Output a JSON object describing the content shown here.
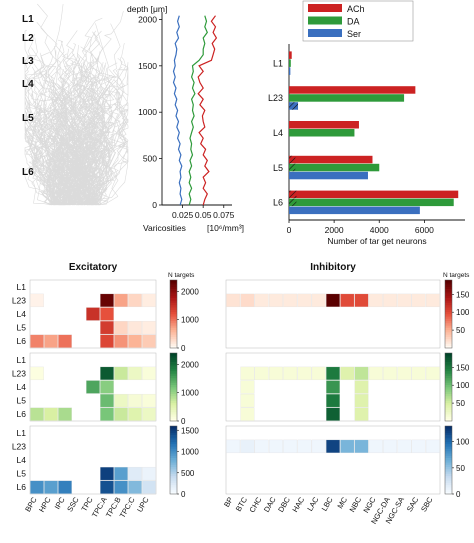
{
  "chart_data": [
    {
      "type": "morphology",
      "layer_labels": [
        "L1",
        "L2",
        "L3",
        "L4",
        "L5",
        "L6"
      ]
    },
    {
      "type": "line",
      "ylabel": "depth [μm]",
      "xlabel": "Varicosities",
      "xlabel_unit": "[10⁶/mm³]",
      "xticks": [
        0.025,
        0.05,
        0.075
      ],
      "xlim": [
        0.0,
        0.085
      ],
      "yticks": [
        0,
        500,
        1000,
        1500,
        2000
      ],
      "ylim": [
        0,
        2080
      ],
      "series": [
        {
          "name": "ACh",
          "color": "#cc2222",
          "x": [
            0.05,
            0.052,
            0.055,
            0.05,
            0.053,
            0.05,
            0.057,
            0.052,
            0.055,
            0.05,
            0.053,
            0.047,
            0.05,
            0.045,
            0.052,
            0.05,
            0.049,
            0.052,
            0.046,
            0.05,
            0.044,
            0.05,
            0.046,
            0.044,
            0.05,
            0.045,
            0.06,
            0.062,
            0.064,
            0.061,
            0.066,
            0.062,
            0.065,
            0.06,
            0.065
          ],
          "y": [
            0,
            60,
            120,
            180,
            240,
            300,
            360,
            420,
            480,
            540,
            600,
            660,
            720,
            780,
            840,
            900,
            960,
            1020,
            1080,
            1140,
            1200,
            1260,
            1320,
            1380,
            1440,
            1500,
            1560,
            1620,
            1680,
            1740,
            1800,
            1860,
            1920,
            1980,
            2040
          ]
        },
        {
          "name": "DA",
          "color": "#2e9a3a",
          "x": [
            0.033,
            0.035,
            0.033,
            0.036,
            0.033,
            0.035,
            0.033,
            0.036,
            0.034,
            0.037,
            0.035,
            0.036,
            0.034,
            0.036,
            0.038,
            0.036,
            0.039,
            0.037,
            0.038,
            0.036,
            0.04,
            0.037,
            0.039,
            0.036,
            0.038,
            0.037,
            0.045,
            0.05,
            0.05,
            0.052,
            0.05,
            0.055,
            0.052,
            0.054,
            0.052
          ],
          "y": [
            0,
            60,
            120,
            180,
            240,
            300,
            360,
            420,
            480,
            540,
            600,
            660,
            720,
            780,
            840,
            900,
            960,
            1020,
            1080,
            1140,
            1200,
            1260,
            1320,
            1380,
            1440,
            1500,
            1560,
            1620,
            1680,
            1740,
            1800,
            1860,
            1920,
            1980,
            2040
          ]
        },
        {
          "name": "Ser",
          "color": "#3a6fbf",
          "x": [
            0.022,
            0.024,
            0.022,
            0.023,
            0.021,
            0.023,
            0.022,
            0.024,
            0.021,
            0.023,
            0.02,
            0.022,
            0.019,
            0.021,
            0.018,
            0.02,
            0.017,
            0.019,
            0.016,
            0.018,
            0.015,
            0.017,
            0.014,
            0.016,
            0.014,
            0.016,
            0.015,
            0.017,
            0.018,
            0.016,
            0.02,
            0.018,
            0.021,
            0.019,
            0.021
          ],
          "y": [
            0,
            60,
            120,
            180,
            240,
            300,
            360,
            420,
            480,
            540,
            600,
            660,
            720,
            780,
            840,
            900,
            960,
            1020,
            1080,
            1140,
            1200,
            1260,
            1320,
            1380,
            1440,
            1500,
            1560,
            1620,
            1680,
            1740,
            1800,
            1860,
            1920,
            1980,
            2040
          ]
        }
      ]
    },
    {
      "type": "bar",
      "orientation": "horizontal",
      "categories": [
        "L1",
        "L23",
        "L4",
        "L5",
        "L6"
      ],
      "xlabel": "Number of tar get neurons",
      "xticks": [
        0,
        2000,
        4000,
        6000
      ],
      "xlim": [
        0,
        7800
      ],
      "legend": [
        "ACh",
        "DA",
        "Ser"
      ],
      "legend_position": "top",
      "series": [
        {
          "name": "ACh",
          "color": "#cc2222",
          "values": [
            120,
            5600,
            3100,
            3700,
            7500
          ]
        },
        {
          "name": "DA",
          "color": "#2e9a3a",
          "values": [
            80,
            5100,
            2900,
            4000,
            7300
          ]
        },
        {
          "name": "Ser",
          "color": "#3a6fbf",
          "values": [
            60,
            400,
            0,
            3500,
            5800
          ]
        }
      ],
      "hatched_overlay": [
        {
          "category": "L23",
          "values": [
            0,
            0,
            400
          ]
        },
        {
          "category": "L5",
          "values": [
            280,
            280,
            0
          ]
        },
        {
          "category": "L6",
          "values": [
            330,
            330,
            0
          ]
        }
      ]
    },
    {
      "type": "heatmap",
      "title": "Excitatory",
      "rows": [
        "L1",
        "L23",
        "L4",
        "L5",
        "L6"
      ],
      "columns": [
        "BPC",
        "HPC",
        "IPC",
        "SSC",
        "TPC",
        "TPC:A",
        "TPC:B",
        "TPC:C",
        "UPC"
      ],
      "panels": [
        {
          "name": "ACh",
          "max": 2400,
          "ticks": [
            0,
            1000,
            2000
          ],
          "colorbar_label": "N targets",
          "values": [
            [
              null,
              null,
              null,
              null,
              null,
              null,
              null,
              null,
              null
            ],
            [
              50,
              null,
              null,
              null,
              null,
              2300,
              700,
              300,
              100
            ],
            [
              null,
              null,
              null,
              null,
              1500,
              1200,
              null,
              null,
              null
            ],
            [
              null,
              null,
              null,
              null,
              null,
              1400,
              300,
              150,
              100
            ],
            [
              900,
              700,
              1000,
              null,
              null,
              1300,
              800,
              600,
              400
            ]
          ]
        },
        {
          "name": "DA",
          "max": 2400,
          "ticks": [
            0,
            1000,
            2000
          ],
          "values": [
            [
              null,
              null,
              null,
              null,
              null,
              null,
              null,
              null,
              null
            ],
            [
              50,
              null,
              null,
              null,
              null,
              2200,
              700,
              300,
              100
            ],
            [
              null,
              null,
              null,
              null,
              1500,
              1100,
              null,
              null,
              null
            ],
            [
              null,
              null,
              null,
              null,
              null,
              1300,
              300,
              150,
              100
            ],
            [
              800,
              600,
              900,
              null,
              null,
              1200,
              700,
              500,
              300
            ]
          ]
        },
        {
          "name": "Ser",
          "max": 1600,
          "ticks": [
            0,
            500,
            1000,
            1500
          ],
          "values": [
            [
              null,
              null,
              null,
              null,
              null,
              null,
              null,
              null,
              null
            ],
            [
              null,
              null,
              null,
              null,
              null,
              null,
              null,
              null,
              null
            ],
            [
              null,
              null,
              null,
              null,
              null,
              null,
              null,
              null,
              null
            ],
            [
              null,
              null,
              null,
              null,
              null,
              1500,
              900,
              200,
              100
            ],
            [
              1000,
              900,
              1100,
              null,
              null,
              1400,
              1000,
              700,
              300
            ]
          ]
        }
      ]
    },
    {
      "type": "heatmap",
      "title": "Inhibitory",
      "rows": [
        "L1",
        "L23",
        "L4",
        "L5",
        "L6"
      ],
      "columns": [
        "BP",
        "BTC",
        "CHC",
        "DAC",
        "DBC",
        "HAC",
        "LAC",
        "LBC",
        "MC",
        "NBC",
        "NGC",
        "NGC-DA",
        "NGC-SA",
        "SAC",
        "SBC"
      ],
      "panels": [
        {
          "name": "ACh",
          "max": 190,
          "ticks": [
            50,
            100,
            150
          ],
          "colorbar_label": "N targets",
          "values": [
            [
              null,
              null,
              null,
              null,
              null,
              null,
              null,
              null,
              null,
              null,
              null,
              null,
              null,
              null,
              null
            ],
            [
              15,
              20,
              10,
              10,
              10,
              10,
              10,
              190,
              100,
              100,
              10,
              10,
              10,
              10,
              10
            ],
            [
              null,
              null,
              null,
              null,
              null,
              null,
              null,
              null,
              null,
              null,
              null,
              null,
              null,
              null,
              null
            ],
            [
              null,
              null,
              null,
              null,
              null,
              null,
              null,
              null,
              null,
              null,
              null,
              null,
              null,
              null,
              null
            ],
            [
              null,
              null,
              null,
              null,
              null,
              null,
              null,
              null,
              null,
              null,
              null,
              null,
              null,
              null,
              null
            ]
          ]
        },
        {
          "name": "DA",
          "max": 190,
          "ticks": [
            50,
            100,
            150
          ],
          "values": [
            [
              null,
              null,
              null,
              null,
              null,
              null,
              null,
              null,
              null,
              null,
              null,
              null,
              null,
              null,
              null
            ],
            [
              null,
              10,
              10,
              10,
              10,
              10,
              10,
              150,
              40,
              60,
              10,
              10,
              10,
              10,
              10
            ],
            [
              null,
              10,
              null,
              null,
              null,
              null,
              null,
              130,
              null,
              40,
              null,
              null,
              null,
              null,
              null
            ],
            [
              null,
              10,
              null,
              null,
              null,
              null,
              null,
              150,
              null,
              40,
              null,
              null,
              null,
              null,
              null
            ],
            [
              null,
              10,
              null,
              null,
              null,
              null,
              null,
              170,
              null,
              40,
              null,
              null,
              null,
              null,
              null
            ]
          ]
        },
        {
          "name": "Ser",
          "max": 130,
          "ticks": [
            0,
            50,
            100
          ],
          "values": [
            [
              null,
              null,
              null,
              null,
              null,
              null,
              null,
              null,
              null,
              null,
              null,
              null,
              null,
              null,
              null
            ],
            [
              5,
              10,
              5,
              5,
              5,
              5,
              5,
              120,
              60,
              60,
              5,
              5,
              5,
              5,
              5
            ],
            [
              null,
              null,
              null,
              null,
              null,
              null,
              null,
              null,
              null,
              null,
              null,
              null,
              null,
              null,
              null
            ],
            [
              null,
              null,
              null,
              null,
              null,
              null,
              null,
              null,
              null,
              null,
              null,
              null,
              null,
              null,
              null
            ],
            [
              null,
              null,
              null,
              null,
              null,
              null,
              null,
              null,
              null,
              null,
              null,
              null,
              null,
              null,
              null
            ]
          ]
        }
      ]
    }
  ]
}
